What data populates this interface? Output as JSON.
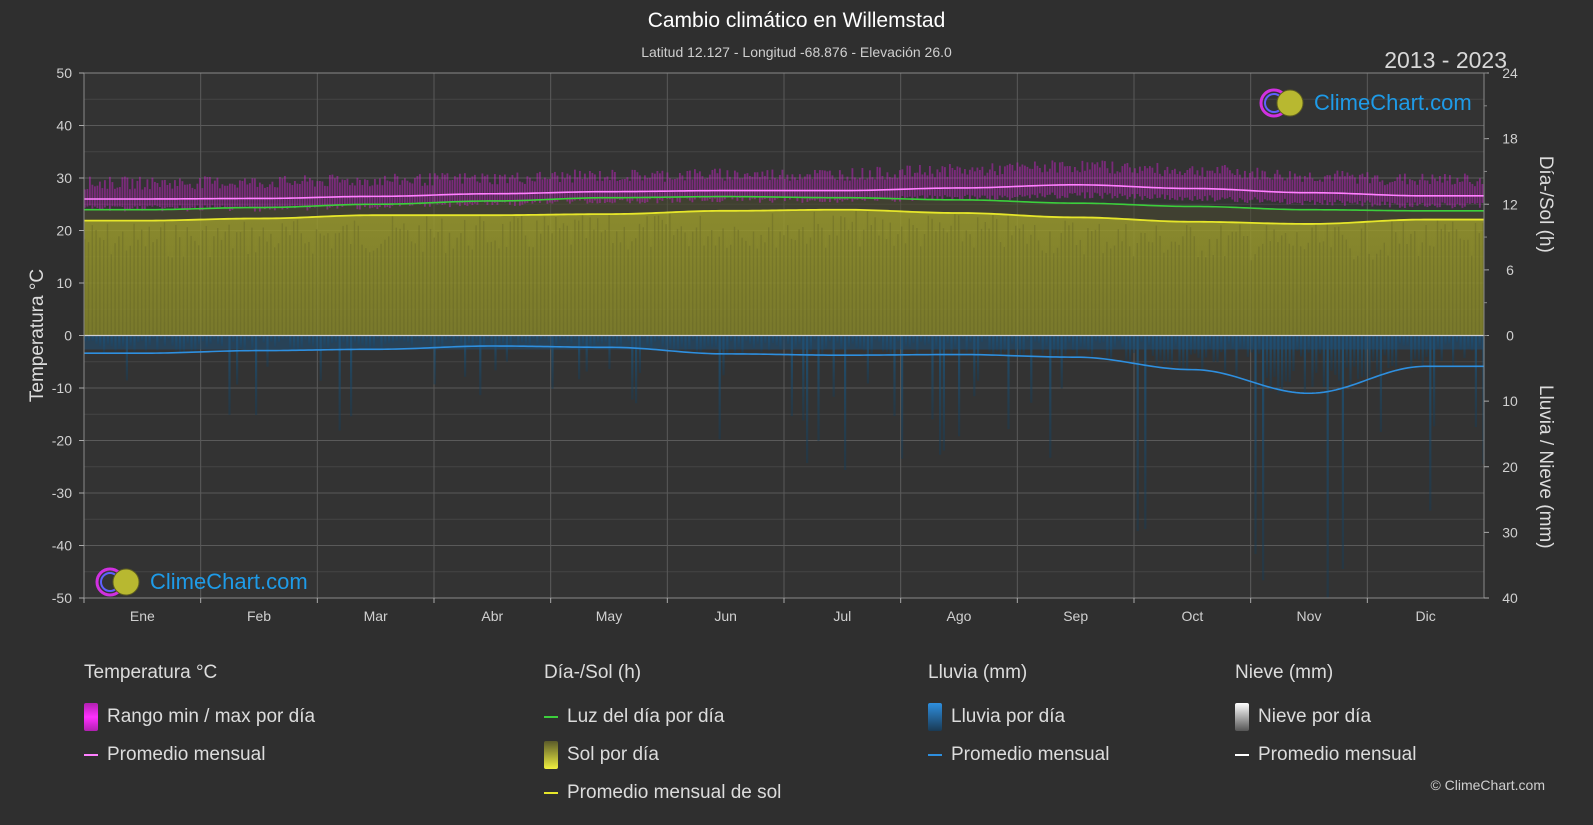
{
  "title": "Cambio climático en Willemstad",
  "subtitle": "Latitud 12.127 - Longitud -68.876 - Elevación 26.0",
  "period": "2013 - 2023",
  "brand": "ClimeChart.com",
  "copyright": "© ClimeChart.com",
  "colors": {
    "background": "#2f2f2f",
    "temp_range": "#e020e0",
    "temp_mean": "#ff80ff",
    "daylight": "#3ccf3c",
    "sunshine_fill": "#8f8f2a",
    "sunshine_mean": "#e6e62a",
    "rain_fill": "#1a5f8f",
    "rain_mean": "#2e8fdf",
    "brand": "#1e9be8"
  },
  "legend": {
    "temperature": {
      "header": "Temperatura °C",
      "range": "Rango min / max por día",
      "mean": "Promedio mensual"
    },
    "sun": {
      "header": "Día-/Sol (h)",
      "daylight": "Luz del día por día",
      "sunshine": "Sol por día",
      "sun_mean": "Promedio mensual de sol"
    },
    "rain": {
      "header": "Lluvia (mm)",
      "rain": "Lluvia por día",
      "mean": "Promedio mensual"
    },
    "snow": {
      "header": "Nieve (mm)",
      "snow": "Nieve por día",
      "mean": "Promedio mensual"
    }
  },
  "chart_data": {
    "type": "line",
    "categories": [
      "Ene",
      "Feb",
      "Mar",
      "Abr",
      "May",
      "Jun",
      "Jul",
      "Ago",
      "Sep",
      "Oct",
      "Nov",
      "Dic"
    ],
    "axes": {
      "left": {
        "label": "Temperatura °C",
        "ticks": [
          50,
          40,
          30,
          20,
          10,
          0,
          -10,
          -20,
          -30,
          -40,
          -50
        ],
        "range": [
          -50,
          50
        ]
      },
      "right_top": {
        "label": "Día-/Sol (h)",
        "ticks": [
          24,
          18,
          12,
          6,
          0
        ],
        "range": [
          0,
          24
        ]
      },
      "right_bottom": {
        "label": "Lluvia / Nieve (mm)",
        "ticks": [
          0,
          10,
          20,
          30,
          40
        ],
        "range": [
          0,
          40
        ]
      }
    },
    "grid": true,
    "series": [
      {
        "name": "Promedio mensual",
        "axis": "temperature",
        "values": [
          26.0,
          26.1,
          26.5,
          27.0,
          27.4,
          27.6,
          27.6,
          28.1,
          28.7,
          28.0,
          27.2,
          26.6
        ]
      },
      {
        "name": "Rango min / max por día",
        "axis": "temperature",
        "min": [
          24.8,
          24.8,
          25.2,
          25.8,
          26.3,
          26.5,
          26.4,
          26.8,
          27.3,
          26.8,
          26.0,
          25.4
        ],
        "max": [
          27.8,
          27.9,
          28.3,
          28.7,
          29.2,
          29.4,
          29.5,
          30.2,
          31.0,
          30.2,
          29.1,
          28.4
        ]
      },
      {
        "name": "Luz del día por día",
        "axis": "sun",
        "values": [
          11.5,
          11.7,
          12.0,
          12.3,
          12.6,
          12.7,
          12.6,
          12.4,
          12.1,
          11.8,
          11.5,
          11.4
        ]
      },
      {
        "name": "Promedio mensual de sol",
        "axis": "sun",
        "values": [
          10.5,
          10.7,
          11.0,
          11.0,
          11.1,
          11.4,
          11.5,
          11.2,
          10.8,
          10.4,
          10.2,
          10.6
        ]
      },
      {
        "name": "Promedio mensual",
        "axis": "rain",
        "values": [
          2.7,
          2.3,
          2.1,
          1.6,
          1.8,
          2.8,
          3.0,
          2.9,
          3.3,
          5.2,
          8.8,
          4.7
        ]
      }
    ]
  }
}
